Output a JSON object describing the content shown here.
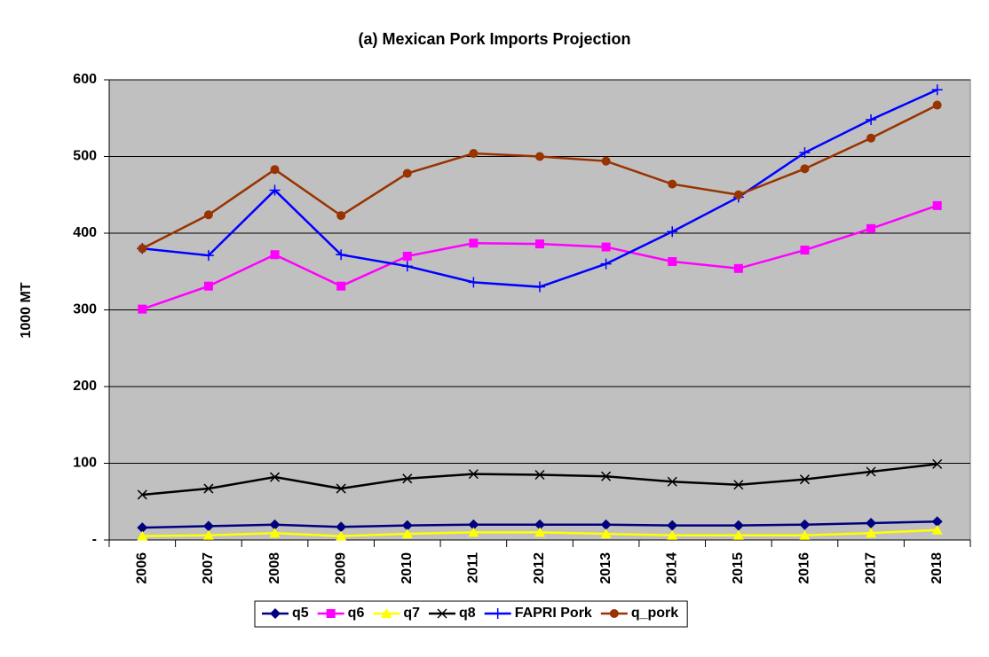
{
  "chart_data": {
    "type": "line",
    "title": "(a) Mexican Pork Imports Projection",
    "y_label": "1000 MT",
    "categories": [
      "2006",
      "2007",
      "2008",
      "2009",
      "2010",
      "2011",
      "2012",
      "2013",
      "2014",
      "2015",
      "2016",
      "2017",
      "2018"
    ],
    "series": [
      {
        "name": "q5",
        "color": "#000080",
        "marker": "diamond",
        "values": [
          16,
          18,
          20,
          17,
          19,
          20,
          20,
          20,
          19,
          19,
          20,
          22,
          24
        ]
      },
      {
        "name": "q6",
        "color": "#ff00ff",
        "marker": "square",
        "values": [
          301,
          331,
          372,
          331,
          370,
          387,
          386,
          382,
          363,
          354,
          378,
          406,
          436
        ]
      },
      {
        "name": "q7",
        "color": "#ffff00",
        "marker": "triangle",
        "values": [
          5,
          6,
          9,
          5,
          8,
          10,
          10,
          8,
          6,
          6,
          6,
          9,
          13
        ]
      },
      {
        "name": "q8",
        "color": "#000000",
        "marker": "x",
        "values": [
          59,
          67,
          82,
          67,
          80,
          86,
          85,
          83,
          76,
          72,
          79,
          89,
          99
        ]
      },
      {
        "name": "FAPRI Pork",
        "color": "#0000ff",
        "marker": "plus",
        "values": [
          380,
          371,
          456,
          372,
          357,
          336,
          330,
          360,
          402,
          447,
          505,
          548,
          587
        ]
      },
      {
        "name": "q_pork",
        "color": "#993300",
        "marker": "circle",
        "values": [
          380,
          424,
          483,
          423,
          478,
          504,
          500,
          494,
          464,
          450,
          484,
          524,
          567
        ]
      }
    ],
    "ylim": [
      0,
      600
    ],
    "yticks": [
      {
        "value": 0,
        "label": "-"
      },
      100,
      200,
      300,
      400,
      500,
      600
    ],
    "grid": true,
    "legend": "bottom",
    "background": "#c0c0c0"
  }
}
